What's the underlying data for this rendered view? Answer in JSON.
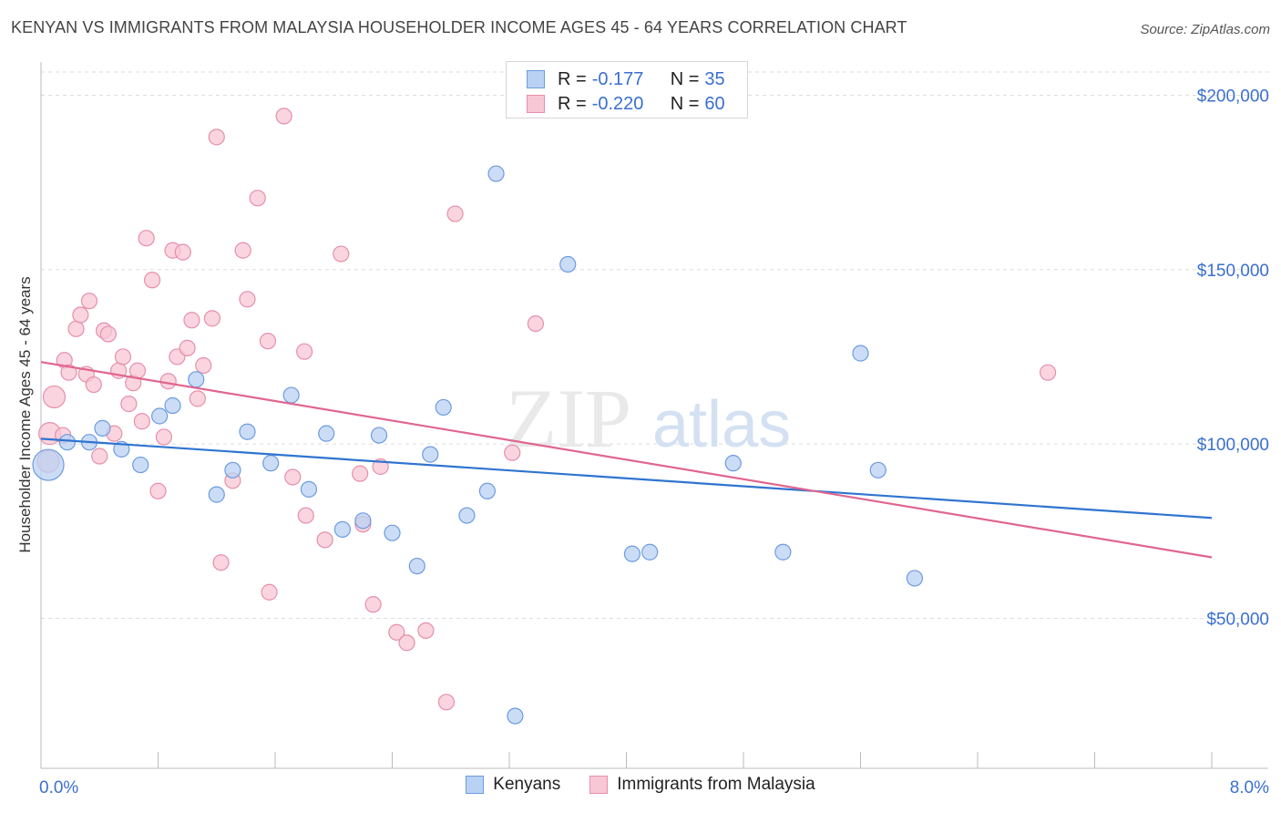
{
  "title": "KENYAN VS IMMIGRANTS FROM MALAYSIA HOUSEHOLDER INCOME AGES 45 - 64 YEARS CORRELATION CHART",
  "source": "Source: ZipAtlas.com",
  "watermark": {
    "zip": "ZIP",
    "atlas": "atlas"
  },
  "colors": {
    "kenyan_fill": "#b9d2f3",
    "kenyan_stroke": "#6d9be0",
    "kenyan_line": "#2f74d0",
    "malaysia_fill": "#f8c7d6",
    "malaysia_stroke": "#e68fab",
    "malaysia_line": "#e0668f",
    "tick_label": "#3a6fd1",
    "grid": "#dddddd"
  },
  "stats": [
    {
      "r_label": "R =",
      "r_value": "-0.177",
      "n_label": "N =",
      "n_value": "35"
    },
    {
      "r_label": "R =",
      "r_value": "-0.220",
      "n_label": "N =",
      "n_value": "60"
    }
  ],
  "legend": {
    "kenyans": "Kenyans",
    "malaysia": "Immigrants from Malaysia"
  },
  "chart_data": {
    "type": "scatter",
    "title": "KENYAN VS IMMIGRANTS FROM MALAYSIA HOUSEHOLDER INCOME AGES 45 - 64 YEARS CORRELATION CHART",
    "xlabel": "",
    "ylabel": "Householder Income Ages 45 - 64 years",
    "xlim": [
      0,
      8
    ],
    "ylim": [
      7000,
      209000
    ],
    "x_tick_labels": [
      "0.0%",
      "8.0%"
    ],
    "y_ticks": [
      50000,
      100000,
      150000,
      200000
    ],
    "y_tick_labels": [
      "$50,000",
      "$100,000",
      "$150,000",
      "$200,000"
    ],
    "grid": true,
    "series": [
      {
        "name": "Kenyans",
        "points": [
          [
            0.05,
            94000,
            3
          ],
          [
            0.33,
            100500,
            1
          ],
          [
            0.42,
            104500,
            1
          ],
          [
            0.55,
            98500,
            1
          ],
          [
            0.68,
            94000,
            1
          ],
          [
            0.81,
            108000,
            1
          ],
          [
            0.9,
            111000,
            1
          ],
          [
            1.06,
            118500,
            1
          ],
          [
            1.2,
            85500,
            1
          ],
          [
            1.31,
            92500,
            1
          ],
          [
            1.41,
            103500,
            1
          ],
          [
            1.57,
            94500,
            1
          ],
          [
            1.71,
            114000,
            1
          ],
          [
            1.83,
            87000,
            1
          ],
          [
            1.95,
            103000,
            1
          ],
          [
            2.06,
            75500,
            1
          ],
          [
            2.2,
            78000,
            1
          ],
          [
            2.31,
            102500,
            1
          ],
          [
            2.4,
            74500,
            1
          ],
          [
            2.57,
            65000,
            1
          ],
          [
            2.66,
            97000,
            1
          ],
          [
            2.75,
            110500,
            1
          ],
          [
            2.91,
            79500,
            1
          ],
          [
            3.05,
            86500,
            1
          ],
          [
            3.11,
            177500,
            1
          ],
          [
            3.24,
            22000,
            1
          ],
          [
            3.6,
            151500,
            1
          ],
          [
            4.04,
            68500,
            1
          ],
          [
            4.16,
            69000,
            1
          ],
          [
            4.73,
            94500,
            1
          ],
          [
            5.07,
            69000,
            1
          ],
          [
            5.6,
            126000,
            1
          ],
          [
            5.72,
            92500,
            1
          ],
          [
            5.97,
            61500,
            1
          ],
          [
            0.18,
            100500,
            1
          ]
        ],
        "trend": {
          "x": [
            0,
            8
          ],
          "y": [
            101500,
            78800
          ]
        }
      },
      {
        "name": "Immigrants from Malaysia",
        "points": [
          [
            0.05,
            95000,
            2
          ],
          [
            0.06,
            103000,
            2
          ],
          [
            0.09,
            113500,
            2
          ],
          [
            0.15,
            102500,
            1
          ],
          [
            0.16,
            124000,
            1
          ],
          [
            0.19,
            120500,
            1
          ],
          [
            0.24,
            133000,
            1
          ],
          [
            0.27,
            137000,
            1
          ],
          [
            0.31,
            120000,
            1
          ],
          [
            0.33,
            141000,
            1
          ],
          [
            0.36,
            117000,
            1
          ],
          [
            0.4,
            96500,
            1
          ],
          [
            0.43,
            132500,
            1
          ],
          [
            0.46,
            131500,
            1
          ],
          [
            0.5,
            103000,
            1
          ],
          [
            0.53,
            121000,
            1
          ],
          [
            0.56,
            125000,
            1
          ],
          [
            0.6,
            111500,
            1
          ],
          [
            0.63,
            117500,
            1
          ],
          [
            0.66,
            121000,
            1
          ],
          [
            0.69,
            106500,
            1
          ],
          [
            0.72,
            159000,
            1
          ],
          [
            0.76,
            147000,
            1
          ],
          [
            0.8,
            86500,
            1
          ],
          [
            0.84,
            102000,
            1
          ],
          [
            0.87,
            118000,
            1
          ],
          [
            0.9,
            155500,
            1
          ],
          [
            0.93,
            125000,
            1
          ],
          [
            0.97,
            155000,
            1
          ],
          [
            1.0,
            127500,
            1
          ],
          [
            1.03,
            135500,
            1
          ],
          [
            1.07,
            113000,
            1
          ],
          [
            1.11,
            122500,
            1
          ],
          [
            1.17,
            136000,
            1
          ],
          [
            1.2,
            188000,
            1
          ],
          [
            1.23,
            66000,
            1
          ],
          [
            1.31,
            89500,
            1
          ],
          [
            1.38,
            155500,
            1
          ],
          [
            1.41,
            141500,
            1
          ],
          [
            1.48,
            170500,
            1
          ],
          [
            1.55,
            129500,
            1
          ],
          [
            1.56,
            57500,
            1
          ],
          [
            1.66,
            194000,
            1
          ],
          [
            1.72,
            90500,
            1
          ],
          [
            1.8,
            126500,
            1
          ],
          [
            1.81,
            79500,
            1
          ],
          [
            1.94,
            72500,
            1
          ],
          [
            2.05,
            154500,
            1
          ],
          [
            2.18,
            91500,
            1
          ],
          [
            2.2,
            77000,
            1
          ],
          [
            2.27,
            54000,
            1
          ],
          [
            2.32,
            93500,
            1
          ],
          [
            2.43,
            46000,
            1
          ],
          [
            2.5,
            43000,
            1
          ],
          [
            2.63,
            46500,
            1
          ],
          [
            2.77,
            26000,
            1
          ],
          [
            2.83,
            166000,
            1
          ],
          [
            3.22,
            97500,
            1
          ],
          [
            3.38,
            134500,
            1
          ],
          [
            6.88,
            120500,
            1
          ]
        ],
        "trend": {
          "x": [
            0,
            8
          ],
          "y": [
            123500,
            67500
          ]
        }
      }
    ]
  }
}
